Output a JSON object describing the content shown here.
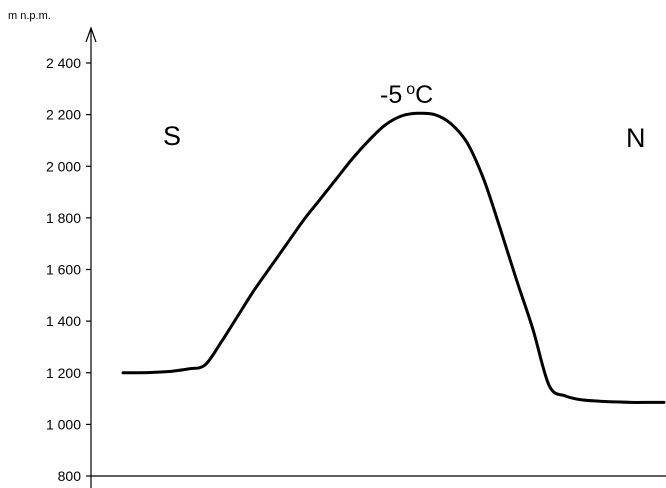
{
  "chart_data": {
    "type": "line",
    "ylabel": "m n.p.m.",
    "ylim": [
      800,
      2500
    ],
    "yticks": [
      {
        "value": 800,
        "label": "800"
      },
      {
        "value": 1000,
        "label": "1 000"
      },
      {
        "value": 1200,
        "label": "1 200"
      },
      {
        "value": 1400,
        "label": "1 400"
      },
      {
        "value": 1600,
        "label": "1 600"
      },
      {
        "value": 1800,
        "label": "1 800"
      },
      {
        "value": 2000,
        "label": "2 000"
      },
      {
        "value": 2200,
        "label": "2 200"
      },
      {
        "value": 2400,
        "label": "2 400"
      }
    ],
    "series": [
      {
        "profile": [
          1200,
          1200,
          1202,
          1206,
          1215,
          1230,
          1320,
          1420,
          1520,
          1610,
          1700,
          1790,
          1870,
          1950,
          2030,
          2100,
          2160,
          2195,
          2205,
          2200,
          2165,
          2090,
          1950,
          1760,
          1560,
          1370,
          1150,
          1110,
          1095,
          1090,
          1087,
          1085,
          1085,
          1085
        ]
      }
    ],
    "annotations": {
      "left_direction": "S",
      "right_direction": "N",
      "peak_temperature_value": "-5",
      "peak_temperature_degree": "o",
      "peak_temperature_unit": "C"
    },
    "grid": false,
    "legend": "none"
  }
}
